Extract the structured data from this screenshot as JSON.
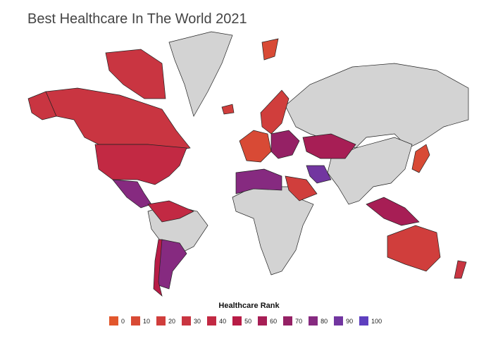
{
  "title": "Best Healthcare In The World 2021",
  "legend": {
    "title": "Healthcare Rank",
    "items": [
      {
        "label": "0",
        "color": "#e2572d"
      },
      {
        "label": "10",
        "color": "#d84a35"
      },
      {
        "label": "20",
        "color": "#d03e3c"
      },
      {
        "label": "30",
        "color": "#c93541"
      },
      {
        "label": "40",
        "color": "#c22943"
      },
      {
        "label": "50",
        "color": "#b81c46"
      },
      {
        "label": "60",
        "color": "#a71e55"
      },
      {
        "label": "70",
        "color": "#952165"
      },
      {
        "label": "80",
        "color": "#862a80"
      },
      {
        "label": "90",
        "color": "#7236a0"
      },
      {
        "label": "100",
        "color": "#5e3fbf"
      }
    ]
  },
  "nodata_color": "#d3d3d3"
}
